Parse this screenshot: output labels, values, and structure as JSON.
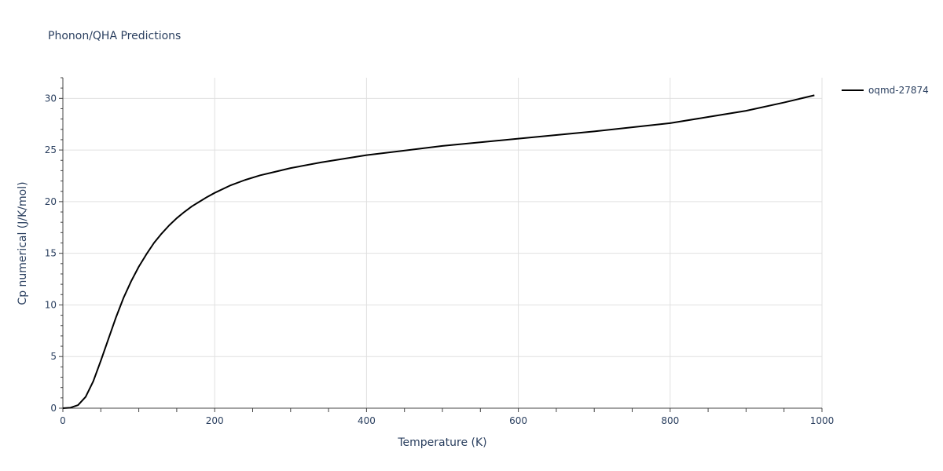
{
  "chart_data": {
    "type": "line",
    "title": "Phonon/QHA Predictions",
    "xlabel": "Temperature (K)",
    "ylabel": "Cp numerical (J/K/mol)",
    "xlim": [
      0,
      1000
    ],
    "ylim": [
      0,
      32
    ],
    "xticks": [
      0,
      200,
      400,
      600,
      800,
      1000
    ],
    "yticks": [
      0,
      5,
      10,
      15,
      20,
      25,
      30
    ],
    "grid": true,
    "legend_position": "top-right",
    "series": [
      {
        "name": "oqmd-27874",
        "color": "#000000",
        "x": [
          0,
          10,
          20,
          30,
          40,
          50,
          60,
          70,
          80,
          90,
          100,
          110,
          120,
          130,
          140,
          150,
          160,
          170,
          180,
          190,
          200,
          220,
          240,
          260,
          280,
          300,
          340,
          400,
          500,
          600,
          700,
          800,
          850,
          900,
          950,
          990
        ],
        "y": [
          0,
          0.05,
          0.3,
          1.1,
          2.6,
          4.6,
          6.7,
          8.8,
          10.7,
          12.3,
          13.7,
          14.9,
          16.0,
          16.9,
          17.7,
          18.4,
          19.0,
          19.55,
          20.0,
          20.45,
          20.85,
          21.55,
          22.1,
          22.55,
          22.9,
          23.25,
          23.8,
          24.5,
          25.4,
          26.1,
          26.8,
          27.6,
          28.2,
          28.8,
          29.6,
          30.3
        ]
      }
    ]
  }
}
